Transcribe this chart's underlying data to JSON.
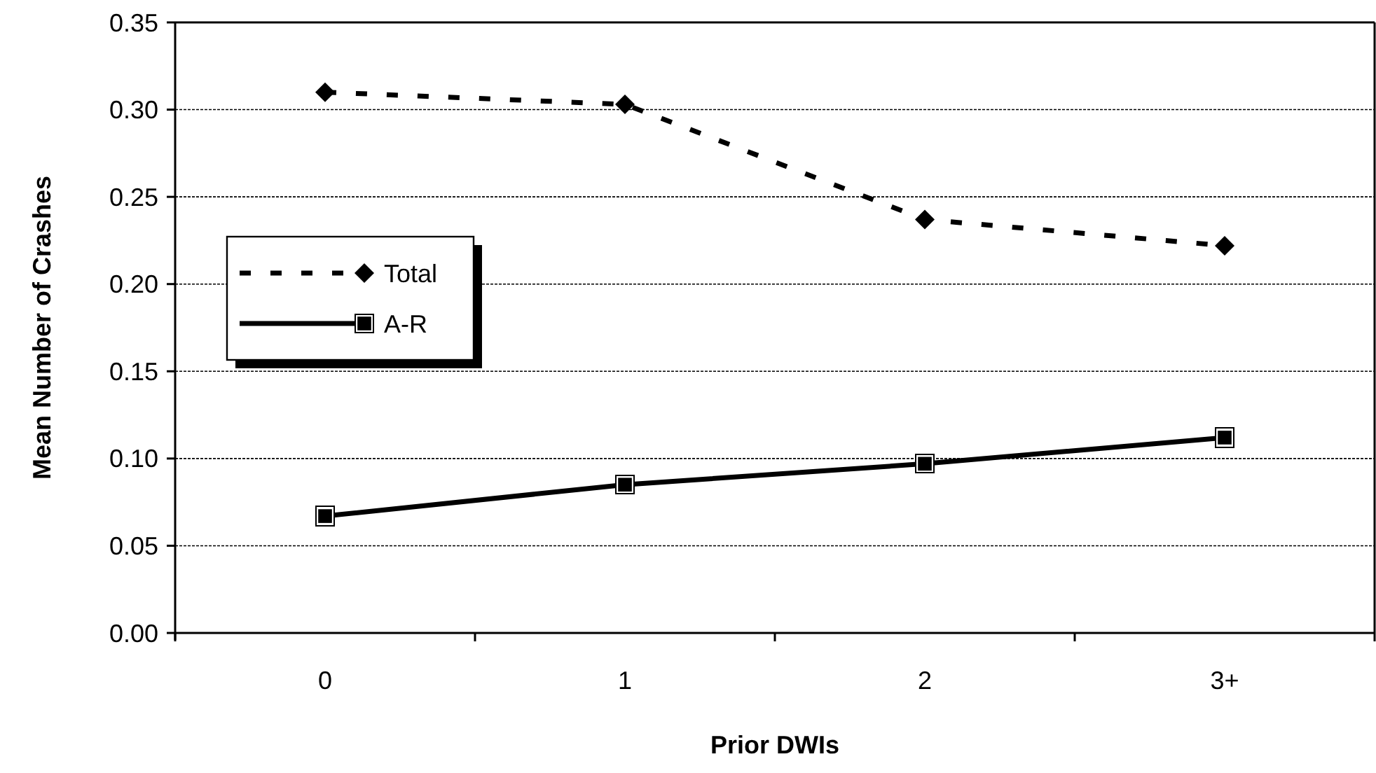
{
  "chart_data": {
    "type": "line",
    "xlabel": "Prior DWIs",
    "ylabel": "Mean Number of Crashes",
    "categories": [
      "0",
      "1",
      "2",
      "3+"
    ],
    "series": [
      {
        "name": "Total",
        "color": "#000000",
        "values": [
          0.31,
          0.303,
          0.237,
          0.222
        ],
        "marker": "diamond",
        "line_style": "dashed"
      },
      {
        "name": "A-R",
        "color": "#000000",
        "values": [
          0.067,
          0.085,
          0.097,
          0.112
        ],
        "marker": "square",
        "line_style": "solid"
      }
    ],
    "ylim": [
      0,
      0.35
    ],
    "yticks": [
      {
        "value": 0,
        "label": "0.00"
      },
      {
        "value": 0.05,
        "label": "0.05"
      },
      {
        "value": 0.1,
        "label": "0.10"
      },
      {
        "value": 0.15,
        "label": "0.15"
      },
      {
        "value": 0.2,
        "label": "0.20"
      },
      {
        "value": 0.25,
        "label": "0.25"
      },
      {
        "value": 0.3,
        "label": "0.30"
      },
      {
        "value": 0.35,
        "label": "0.35"
      }
    ],
    "grid": "y",
    "legend": "left"
  }
}
